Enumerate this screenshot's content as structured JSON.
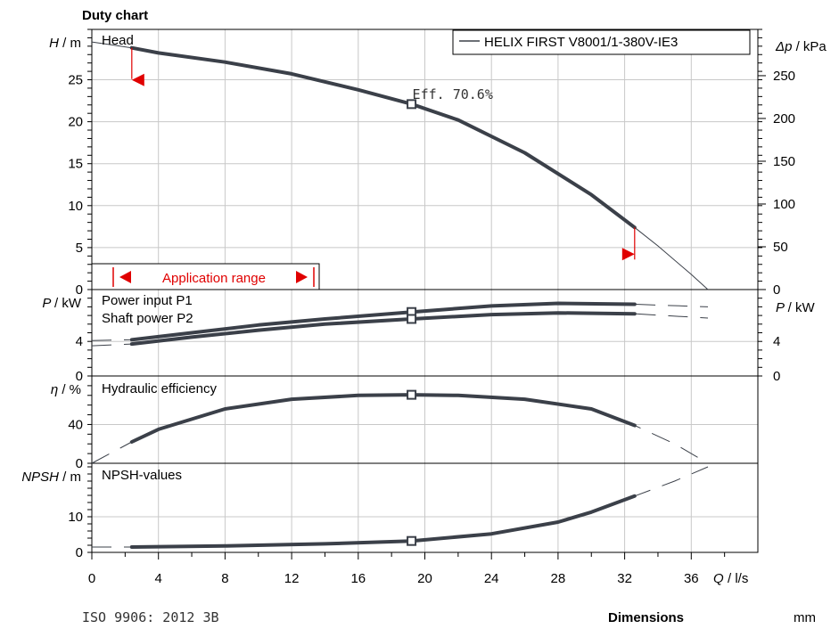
{
  "title": "Duty chart",
  "legend_label": "HELIX FIRST V8001/1-380V-IE3",
  "footer": {
    "standard": "ISO 9906: 2012 3B",
    "dimensions_label": "Dimensions",
    "dimensions_unit": "mm"
  },
  "x_axis": {
    "symbol": "Q",
    "unit": "/ l/s",
    "ticks": [
      0,
      4,
      8,
      12,
      16,
      20,
      24,
      28,
      32,
      36
    ]
  },
  "colors": {
    "curve": "#3b4049",
    "grid": "#c8c8c8",
    "range": "#e00000"
  },
  "chart_data": [
    {
      "type": "line",
      "panel": "head",
      "panel_label": "Head",
      "ylabel_symbol": "H",
      "ylabel_unit": "/ m",
      "ylim": [
        0,
        31
      ],
      "yticks": [
        0,
        5,
        10,
        15,
        20,
        25
      ],
      "ylabel_right_symbol": "Δp",
      "ylabel_right_unit": "/ kPa",
      "yticks_right": [
        0,
        50,
        100,
        150,
        200,
        250
      ],
      "xlim": [
        0,
        40
      ],
      "operating_range": [
        2.4,
        32.6
      ],
      "series": [
        {
          "name": "HELIX FIRST V8001/1-380V-IE3",
          "x": [
            0,
            2.4,
            4,
            8,
            12,
            16,
            19.2,
            22,
            26,
            30,
            32.6,
            34,
            36,
            37
          ],
          "y": [
            29.5,
            28.8,
            28.2,
            27.1,
            25.7,
            23.8,
            22.1,
            20.2,
            16.3,
            11.3,
            7.4,
            5.2,
            1.8,
            0
          ]
        }
      ],
      "duty_point": {
        "x": 19.2,
        "y": 22.1,
        "label": "Eff.  70.6%"
      },
      "range_label": "Application range"
    },
    {
      "type": "line",
      "panel": "power",
      "panel_labels": [
        "Power input P1",
        "Shaft power P2"
      ],
      "ylabel_symbol": "P",
      "ylabel_unit": "/ kW",
      "ylim": [
        0,
        10
      ],
      "yticks": [
        0,
        4
      ],
      "yticks_right": [
        0,
        4
      ],
      "series": [
        {
          "name": "Power input P1",
          "x": [
            0,
            2.4,
            6,
            10,
            14,
            19.2,
            24,
            28,
            32.6,
            37
          ],
          "y": [
            4.1,
            4.2,
            5.0,
            5.9,
            6.6,
            7.4,
            8.1,
            8.4,
            8.3,
            8.0
          ]
        },
        {
          "name": "Shaft power P2",
          "x": [
            0,
            2.4,
            6,
            10,
            14,
            19.2,
            24,
            28,
            32.6,
            37
          ],
          "y": [
            3.5,
            3.7,
            4.5,
            5.3,
            6.0,
            6.6,
            7.1,
            7.3,
            7.2,
            6.7
          ]
        }
      ],
      "duty_points": [
        {
          "x": 19.2,
          "y": 7.4
        },
        {
          "x": 19.2,
          "y": 6.6
        }
      ]
    },
    {
      "type": "line",
      "panel": "efficiency",
      "panel_label": "Hydraulic efficiency",
      "ylabel_symbol": "η",
      "ylabel_unit": "/ %",
      "ylim": [
        0,
        90
      ],
      "yticks": [
        0,
        40
      ],
      "series": [
        {
          "name": "Hydraulic efficiency",
          "x": [
            0,
            2.4,
            4,
            8,
            12,
            16,
            19.2,
            22,
            26,
            30,
            32.6,
            35,
            37
          ],
          "y": [
            0,
            22,
            35,
            56,
            66,
            70,
            70.6,
            70,
            66,
            56,
            39,
            20,
            0
          ]
        }
      ],
      "duty_point": {
        "x": 19.2,
        "y": 70.6
      }
    },
    {
      "type": "line",
      "panel": "npsh",
      "panel_label": "NPSH-values",
      "ylabel_symbol": "NPSH",
      "ylabel_unit": "/ m",
      "ylim": [
        0,
        25
      ],
      "yticks": [
        0,
        10
      ],
      "series": [
        {
          "name": "NPSH-values",
          "x": [
            0,
            2.4,
            8,
            14,
            19.2,
            24,
            28,
            30,
            32.6,
            35,
            37
          ],
          "y": [
            1.5,
            1.5,
            1.8,
            2.4,
            3.2,
            5.2,
            8.5,
            11.3,
            15.8,
            20,
            24
          ]
        }
      ],
      "duty_point": {
        "x": 19.2,
        "y": 3.2
      }
    }
  ]
}
